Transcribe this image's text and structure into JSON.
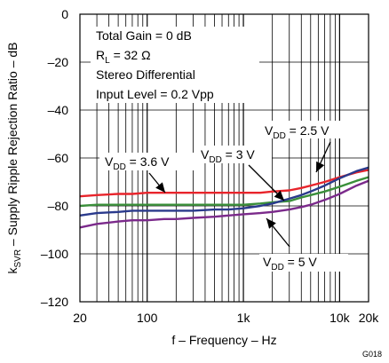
{
  "figure_id": "G018",
  "chart_data": {
    "type": "line",
    "xlabel": "f – Frequency – Hz",
    "ylabel": "k<sub>SVR</sub> – Supply Ripple Rejection Ratio – dB",
    "ylabel_main": "k",
    "ylabel_sub": "SVR",
    "ylabel_rest": " – Supply Ripple Rejection Ratio – dB",
    "x_scale": "log",
    "xlim": [
      20,
      20000
    ],
    "ylim": [
      -120,
      0
    ],
    "grid": true,
    "x_ticks": [
      {
        "value": 20,
        "label": "20"
      },
      {
        "value": 100,
        "label": "100"
      },
      {
        "value": 1000,
        "label": "1k"
      },
      {
        "value": 10000,
        "label": "10k"
      },
      {
        "value": 20000,
        "label": "20k"
      }
    ],
    "y_ticks": [
      {
        "value": 0,
        "label": "0"
      },
      {
        "value": -20,
        "label": "–20"
      },
      {
        "value": -40,
        "label": "–40"
      },
      {
        "value": -60,
        "label": "–60"
      },
      {
        "value": -80,
        "label": "–80"
      },
      {
        "value": -100,
        "label": "–100"
      },
      {
        "value": -120,
        "label": "–120"
      }
    ],
    "conditions": [
      {
        "main": "Total Gain = 0 dB"
      },
      {
        "main": "R",
        "sub": "L",
        "rest": " = 32 Ω"
      },
      {
        "main": "Stereo Differential"
      },
      {
        "main": "Input Level = 0.2 Vpp"
      }
    ],
    "series": [
      {
        "name": "VDD = 3.6 V",
        "color": "#e8242b",
        "x": [
          20,
          30,
          50,
          70,
          100,
          150,
          200,
          300,
          500,
          700,
          1000,
          1500,
          2000,
          3000,
          4000,
          5000,
          7000,
          10000,
          15000,
          20000
        ],
        "y": [
          -76,
          -75.5,
          -75,
          -75,
          -74.5,
          -74.5,
          -74.5,
          -74.5,
          -74.5,
          -74.5,
          -74.5,
          -74.5,
          -74,
          -73.5,
          -72.5,
          -71.5,
          -70,
          -68,
          -66,
          -65
        ]
      },
      {
        "name": "VDD = 3 V",
        "color": "#3a8f3a",
        "x": [
          20,
          30,
          50,
          70,
          100,
          150,
          200,
          300,
          500,
          700,
          1000,
          1500,
          2000,
          3000,
          4000,
          5000,
          7000,
          10000,
          15000,
          20000
        ],
        "y": [
          -80,
          -79.5,
          -79.5,
          -79.5,
          -79.5,
          -79.5,
          -79.5,
          -79.5,
          -79.5,
          -79.5,
          -79.5,
          -79,
          -78.5,
          -78,
          -76.5,
          -75.5,
          -74,
          -72,
          -69.5,
          -68
        ]
      },
      {
        "name": "VDD = 2.5 V",
        "color": "#2a3a8c",
        "x": [
          20,
          30,
          50,
          70,
          100,
          150,
          200,
          300,
          500,
          700,
          1000,
          1500,
          2000,
          3000,
          4000,
          5000,
          7000,
          10000,
          15000,
          20000
        ],
        "y": [
          -84,
          -83,
          -82.5,
          -82,
          -82,
          -82,
          -82,
          -82,
          -81.5,
          -81.5,
          -81,
          -80,
          -79,
          -77,
          -75.5,
          -74,
          -71.5,
          -68.5,
          -65.5,
          -64
        ]
      },
      {
        "name": "VDD = 5 V",
        "color": "#7b2a8b",
        "x": [
          20,
          30,
          50,
          70,
          100,
          150,
          200,
          300,
          500,
          700,
          1000,
          1500,
          2000,
          3000,
          4000,
          5000,
          7000,
          10000,
          15000,
          20000
        ],
        "y": [
          -89,
          -87.5,
          -86.5,
          -86,
          -86,
          -85.5,
          -85.5,
          -85,
          -84.5,
          -84,
          -83.5,
          -83,
          -82.5,
          -81.5,
          -80.5,
          -79.5,
          -77.5,
          -75,
          -71.5,
          -69.5
        ]
      }
    ],
    "annotations": [
      {
        "series": 0,
        "main": "V",
        "sub": "DD",
        "rest": " = 3.6 V"
      },
      {
        "series": 1,
        "main": "V",
        "sub": "DD",
        "rest": " = 3 V"
      },
      {
        "series": 2,
        "main": "V",
        "sub": "DD",
        "rest": " = 2.5 V"
      },
      {
        "series": 3,
        "main": "V",
        "sub": "DD",
        "rest": " = 5 V"
      }
    ]
  }
}
